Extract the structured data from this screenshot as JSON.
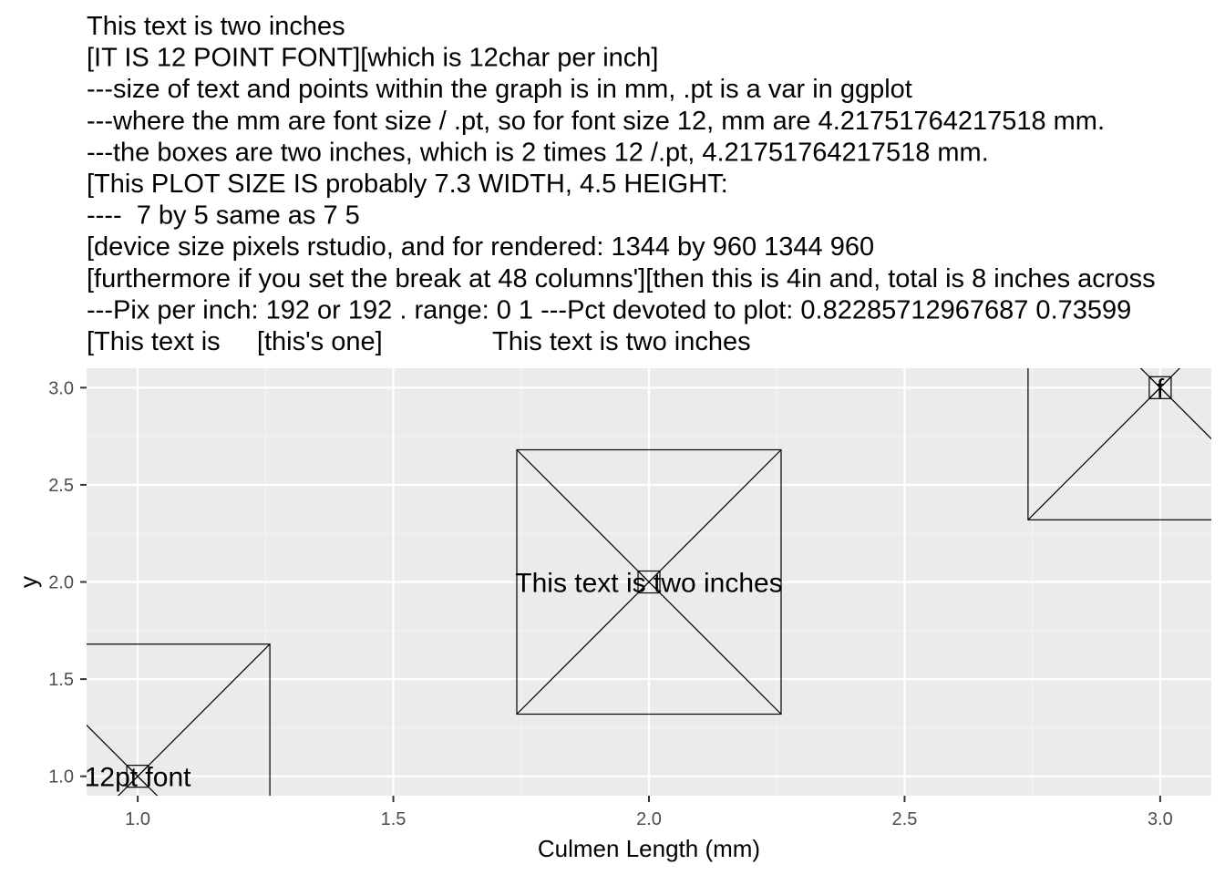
{
  "chart_data": {
    "type": "scatter",
    "title_lines": [
      "This text is two inches",
      "[IT IS 12 POINT FONT][which is 12char per inch]",
      "---size of text and points within the graph is in mm, .pt is a var in ggplot",
      "---where the mm are font size / .pt, so for font size 12, mm are 4.21751764217518 mm.",
      "---the boxes are two inches, which is 2 times 12 /.pt, 4.21751764217518 mm.",
      "[This PLOT SIZE IS probably 7.3 WIDTH, 4.5 HEIGHT:",
      "----  7 by 5 same as 7 5",
      "[device size pixels rstudio, and for rendered: 1344 by 960 1344 960",
      "[furthermore if you set the break at 48 columns'][then this is 4in and, total is 8 inches across",
      "---Pix per inch: 192 or 192 . range: 0 1 ---Pct devoted to plot: 0.82285712967687 0.73599",
      "[This text is     [this's one]               This text is two inches"
    ],
    "xlabel": "Culmen Length (mm)",
    "ylabel": "y",
    "xlim": [
      0.9,
      3.1
    ],
    "ylim": [
      0.9,
      3.1
    ],
    "x_ticks": [
      1.0,
      1.5,
      2.0,
      2.5,
      3.0
    ],
    "x_tick_labels": [
      "1.0",
      "1.5",
      "2.0",
      "2.5",
      "3.0"
    ],
    "y_ticks": [
      1.0,
      1.5,
      2.0,
      2.5,
      3.0
    ],
    "y_tick_labels": [
      "1.0",
      "1.5",
      "2.0",
      "2.5",
      "3.0"
    ],
    "grid": true,
    "points": [
      {
        "x": 1,
        "y": 1,
        "label": "12pt font"
      },
      {
        "x": 2,
        "y": 2,
        "label": "This text is two inches"
      },
      {
        "x": 3,
        "y": 3,
        "label": "f"
      }
    ],
    "marker": "boxed-x",
    "marker_size_inches": 2
  },
  "colors": {
    "panel_background": "#ebebeb",
    "grid_major": "#ffffff",
    "grid_minor": "#f5f5f5",
    "tick_label": "#4d4d4d",
    "marker": "#000000"
  }
}
